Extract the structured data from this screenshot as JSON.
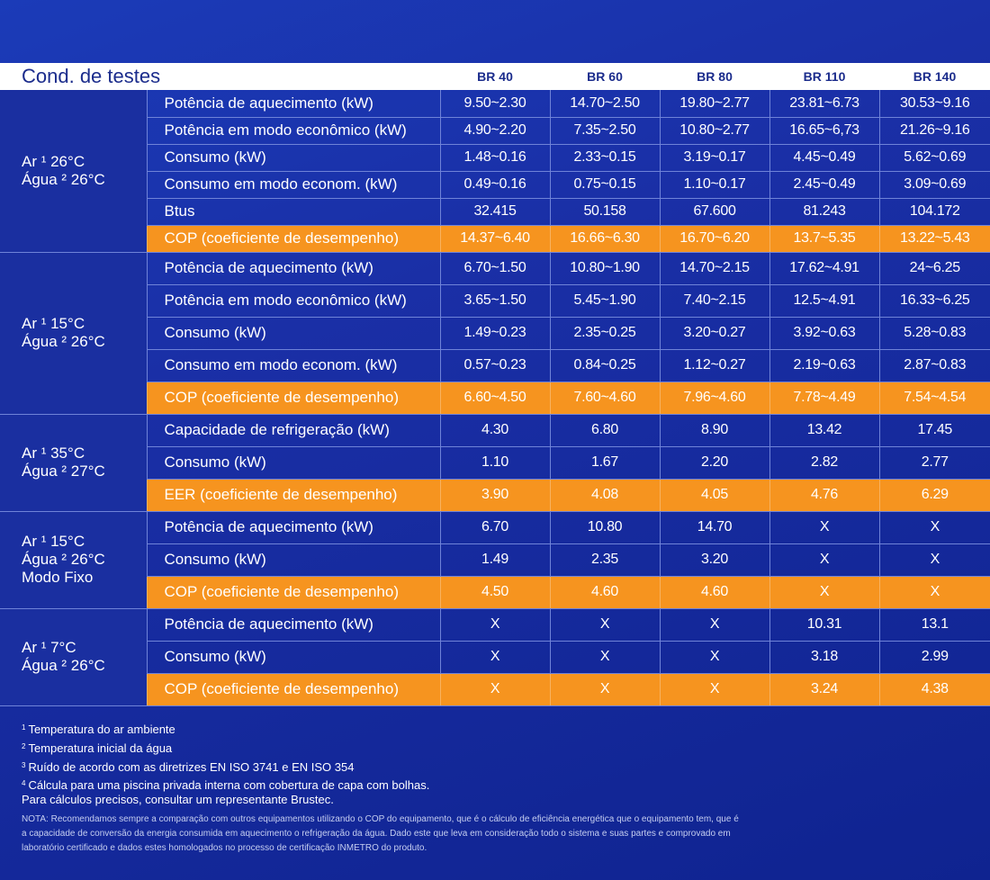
{
  "table": {
    "header": {
      "condition_label": "Cond. de testes",
      "models": [
        "BR 40",
        "BR 60",
        "BR 80",
        "BR 110",
        "BR 140"
      ]
    },
    "groups": [
      {
        "condition_lines": [
          "Ar ¹ 26°C",
          "Água ² 26°C"
        ],
        "rows": [
          {
            "label": "Potência de aquecimento (kW)",
            "values": [
              "9.50~2.30",
              "14.70~2.50",
              "19.80~2.77",
              "23.81~6.73",
              "30.53~9.16"
            ],
            "highlight": false
          },
          {
            "label": "Potência em modo econômico (kW)",
            "values": [
              "4.90~2.20",
              "7.35~2.50",
              "10.80~2.77",
              "16.65~6,73",
              "21.26~9.16"
            ],
            "highlight": false
          },
          {
            "label": "Consumo (kW)",
            "values": [
              "1.48~0.16",
              "2.33~0.15",
              "3.19~0.17",
              "4.45~0.49",
              "5.62~0.69"
            ],
            "highlight": false
          },
          {
            "label": "Consumo em modo econom. (kW)",
            "values": [
              "0.49~0.16",
              "0.75~0.15",
              "1.10~0.17",
              "2.45~0.49",
              "3.09~0.69"
            ],
            "highlight": false
          },
          {
            "label": "Btus",
            "values": [
              "32.415",
              "50.158",
              "67.600",
              "81.243",
              "104.172"
            ],
            "highlight": false
          },
          {
            "label": "COP (coeficiente de desempenho)",
            "values": [
              "14.37~6.40",
              "16.66~6.30",
              "16.70~6.20",
              "13.7~5.35",
              "13.22~5.43"
            ],
            "highlight": true
          }
        ]
      },
      {
        "condition_lines": [
          "Ar ¹ 15°C",
          "Água ² 26°C"
        ],
        "rows": [
          {
            "label": "Potência de aquecimento (kW)",
            "values": [
              "6.70~1.50",
              "10.80~1.90",
              "14.70~2.15",
              "17.62~4.91",
              "24~6.25"
            ],
            "highlight": false
          },
          {
            "label": "Potência em modo econômico (kW)",
            "values": [
              "3.65~1.50",
              "5.45~1.90",
              "7.40~2.15",
              "12.5~4.91",
              "16.33~6.25"
            ],
            "highlight": false
          },
          {
            "label": "Consumo (kW)",
            "values": [
              "1.49~0.23",
              "2.35~0.25",
              "3.20~0.27",
              "3.92~0.63",
              "5.28~0.83"
            ],
            "highlight": false
          },
          {
            "label": "Consumo em modo econom. (kW)",
            "values": [
              "0.57~0.23",
              "0.84~0.25",
              "1.12~0.27",
              "2.19~0.63",
              "2.87~0.83"
            ],
            "highlight": false
          },
          {
            "label": "COP (coeficiente de desempenho)",
            "values": [
              "6.60~4.50",
              "7.60~4.60",
              "7.96~4.60",
              "7.78~4.49",
              "7.54~4.54"
            ],
            "highlight": true
          }
        ]
      },
      {
        "condition_lines": [
          "Ar ¹ 35°C",
          "Água ² 27°C"
        ],
        "rows": [
          {
            "label": "Capacidade de refrigeração (kW)",
            "values": [
              "4.30",
              "6.80",
              "8.90",
              "13.42",
              "17.45"
            ],
            "highlight": false
          },
          {
            "label": "Consumo (kW)",
            "values": [
              "1.10",
              "1.67",
              "2.20",
              "2.82",
              "2.77"
            ],
            "highlight": false
          },
          {
            "label": "EER (coeficiente de desempenho)",
            "values": [
              "3.90",
              "4.08",
              "4.05",
              "4.76",
              "6.29"
            ],
            "highlight": true
          }
        ]
      },
      {
        "condition_lines": [
          "Ar ¹ 15°C",
          "Água ² 26°C",
          "Modo Fixo"
        ],
        "rows": [
          {
            "label": "Potência de aquecimento (kW)",
            "values": [
              "6.70",
              "10.80",
              "14.70",
              "X",
              "X"
            ],
            "highlight": false
          },
          {
            "label": "Consumo (kW)",
            "values": [
              "1.49",
              "2.35",
              "3.20",
              "X",
              "X"
            ],
            "highlight": false
          },
          {
            "label": "COP (coeficiente de desempenho)",
            "values": [
              "4.50",
              "4.60",
              "4.60",
              "X",
              "X"
            ],
            "highlight": true
          }
        ]
      },
      {
        "condition_lines": [
          "Ar ¹ 7°C",
          "Água ² 26°C"
        ],
        "rows": [
          {
            "label": "Potência de aquecimento (kW)",
            "values": [
              "X",
              "X",
              "X",
              "10.31",
              "13.1"
            ],
            "highlight": false
          },
          {
            "label": "Consumo (kW)",
            "values": [
              "X",
              "X",
              "X",
              "3.18",
              "2.99"
            ],
            "highlight": false
          },
          {
            "label": "COP (coeficiente de desempenho)",
            "values": [
              "X",
              "X",
              "X",
              "3.24",
              "4.38"
            ],
            "highlight": true
          }
        ]
      }
    ]
  },
  "notes": {
    "footnotes": [
      {
        "mark": "1",
        "text": "Temperatura do ar ambiente"
      },
      {
        "mark": "2",
        "text": "Temperatura inicial da água"
      },
      {
        "mark": "3",
        "text": "Ruído de acordo com as diretrizes EN ISO 3741 e EN ISO 354"
      }
    ],
    "footnote4": {
      "mark": "4",
      "line1": "Cálcula para uma piscina privada interna com cobertura de capa com bolhas.",
      "line2": "Para cálculos precisos, consultar um representante Brustec."
    },
    "disclaimer": "NOTA: Recomendamos sempre a comparação com outros equipamentos utilizando o COP do equipamento, que é o cálculo de eficiência energética que o equipamento tem, que é a capacidade de conversão da energia consumida em aquecimento o refrigeração da água. Dado este que leva em consideração todo o sistema e suas partes e comprovado em laboratório certificado e dados estes homologados no processo de certificação INMETRO do produto."
  },
  "colors": {
    "background": "#1a2fa6",
    "highlight_row": "#f6941f",
    "header_bg": "#ffffff",
    "header_text": "#1b2c8c"
  }
}
